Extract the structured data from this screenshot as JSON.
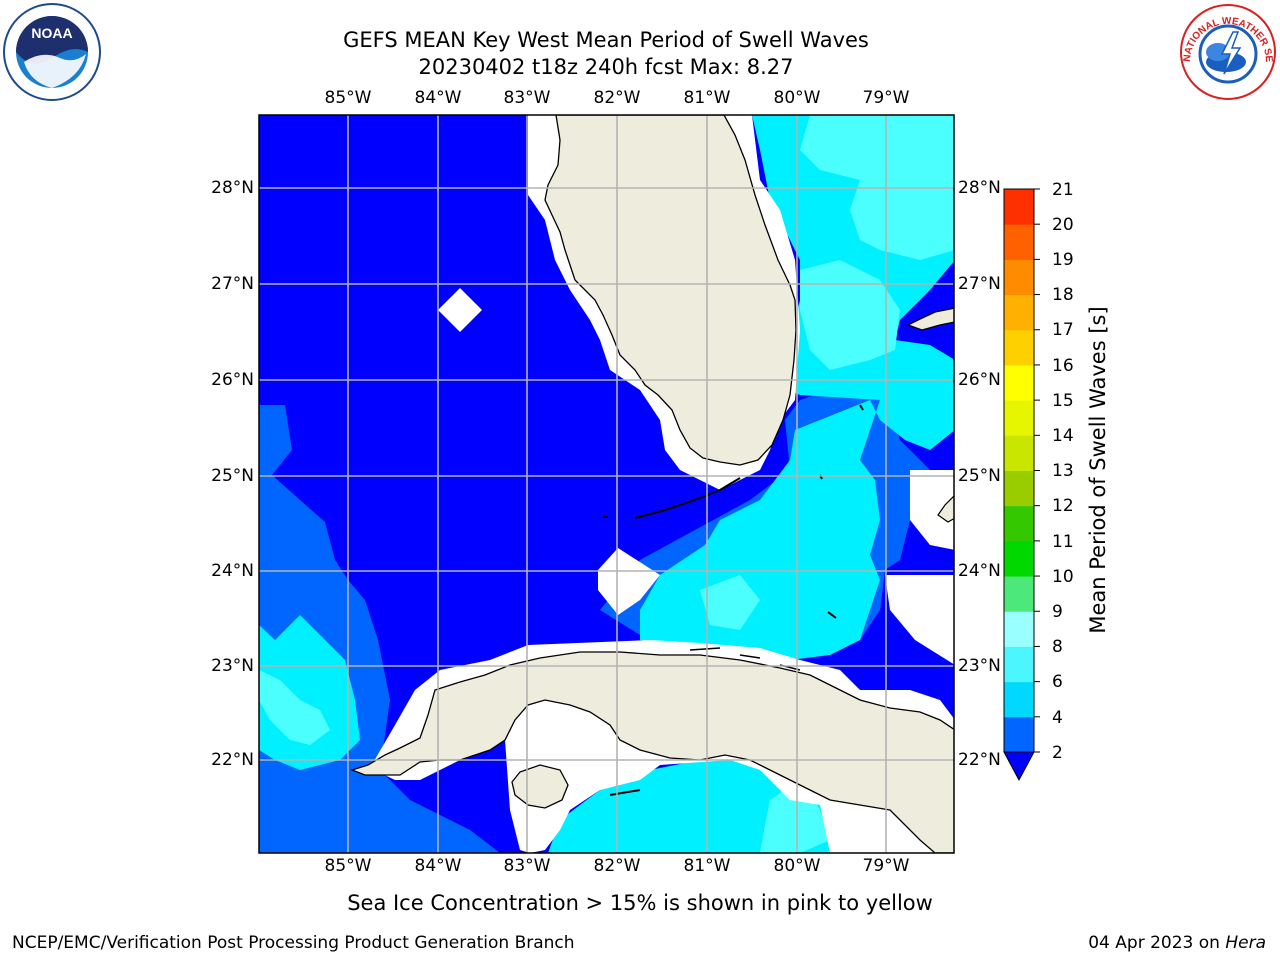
{
  "title": {
    "line1": "GEFS MEAN Key West Mean Period of Swell Waves",
    "line2": "20230402 t18z 240h fcst   Max: 8.27"
  },
  "logos": {
    "left": "NOAA",
    "right": "NATIONAL WEATHER SERVICE"
  },
  "map": {
    "lon_labels": [
      "85°W",
      "84°W",
      "83°W",
      "82°W",
      "81°W",
      "80°W",
      "79°W"
    ],
    "lat_labels": [
      "28°N",
      "27°N",
      "26°N",
      "25°N",
      "24°N",
      "23°N",
      "22°N"
    ],
    "lon_values": [
      -85,
      -84,
      -83,
      -82,
      -81,
      -80,
      -79
    ],
    "lat_values": [
      28,
      27,
      26,
      25,
      24,
      23,
      22
    ],
    "extent": {
      "lon_min": -86.0,
      "lon_max": -78.3,
      "lat_min": 21.0,
      "lat_max": 28.77
    },
    "colors": {
      "land": "#eeecdc",
      "ocean_deep": "#0000ff",
      "grid": "#b3b3b3"
    }
  },
  "colorbar": {
    "title": "Mean Period of Swell Waves [s]",
    "ticks": [
      "2",
      "4",
      "6",
      "8",
      "9",
      "10",
      "11",
      "12",
      "13",
      "14",
      "15",
      "16",
      "17",
      "18",
      "19",
      "20",
      "21"
    ],
    "tick_values": [
      2,
      4,
      6,
      8,
      9,
      10,
      11,
      12,
      13,
      14,
      15,
      16,
      17,
      18,
      19,
      20,
      21
    ],
    "colors": [
      "#0066ff",
      "#00d8ff",
      "#4cf6ff",
      "#99ffff",
      "#4ce87a",
      "#00d800",
      "#33c800",
      "#9acd00",
      "#c8e600",
      "#e6f500",
      "#ffff00",
      "#ffd000",
      "#ffb000",
      "#ff8c00",
      "#ff6000",
      "#ff3000",
      "#ff0000"
    ],
    "under_color": "#0000ff"
  },
  "subtitle": "Sea Ice Concentration > 15% is shown in pink to yellow",
  "footer": {
    "left": "NCEP/EMC/Verification Post Processing Product Generation Branch",
    "date": "04 Apr 2023 on ",
    "host": "Hera"
  }
}
